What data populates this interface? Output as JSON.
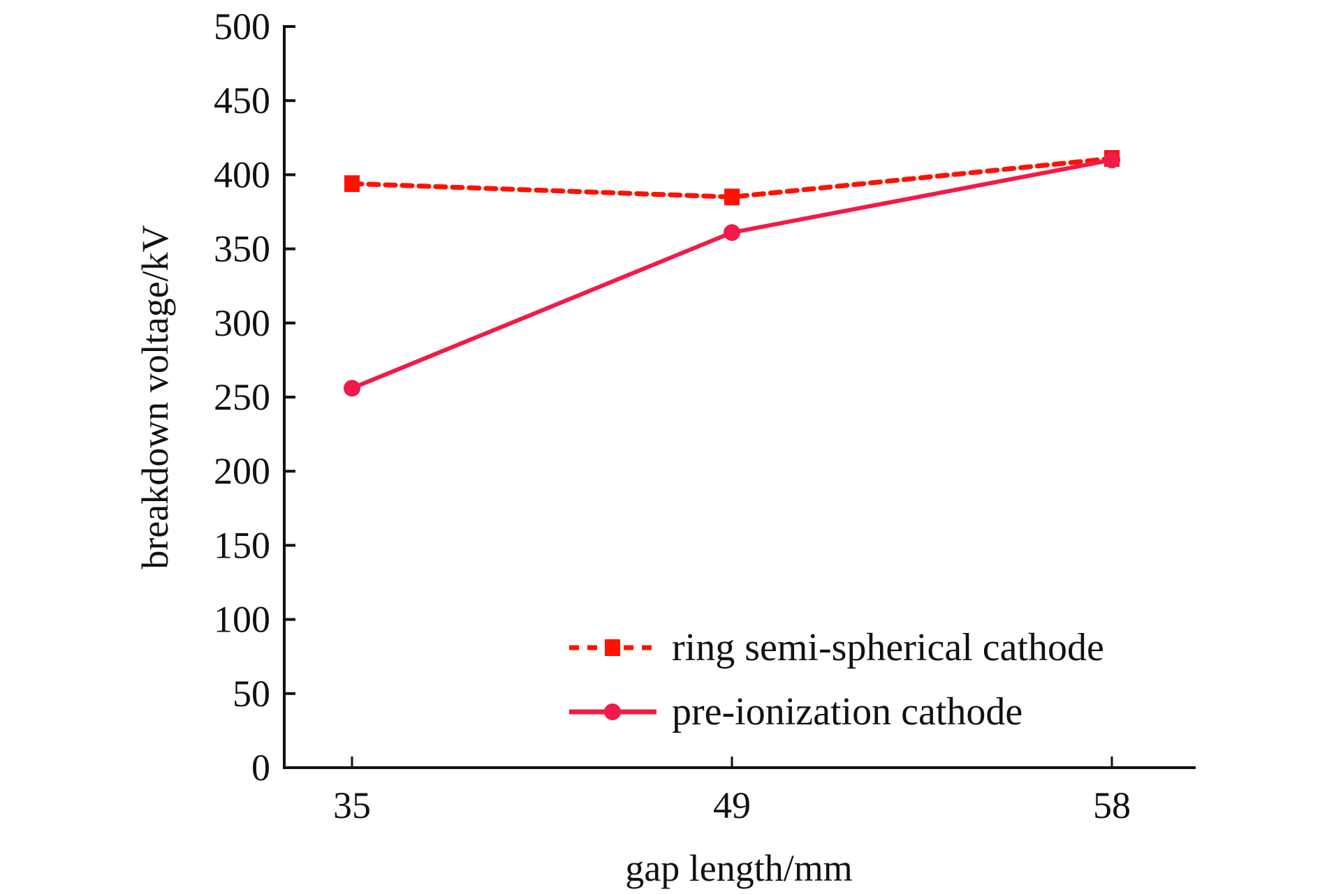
{
  "chart_data": {
    "type": "line",
    "title": "",
    "xlabel": "gap length/mm",
    "ylabel": "breakdown voltage/kV",
    "categories": [
      "35",
      "49",
      "58"
    ],
    "x": [
      35,
      49,
      58
    ],
    "ylim": [
      0,
      500
    ],
    "yticks": [
      0,
      50,
      100,
      150,
      200,
      250,
      300,
      350,
      400,
      450,
      500
    ],
    "grid": false,
    "legend_position": "bottom-right",
    "series": [
      {
        "name": "ring semi-spherical cathode",
        "values": [
          394,
          385,
          411
        ],
        "line_style": "dashed",
        "marker": "square",
        "color": "#ff1100"
      },
      {
        "name": "pre-ionization cathode",
        "values": [
          256,
          361,
          410
        ],
        "line_style": "solid",
        "marker": "circle",
        "color": "#f21a48"
      }
    ]
  }
}
